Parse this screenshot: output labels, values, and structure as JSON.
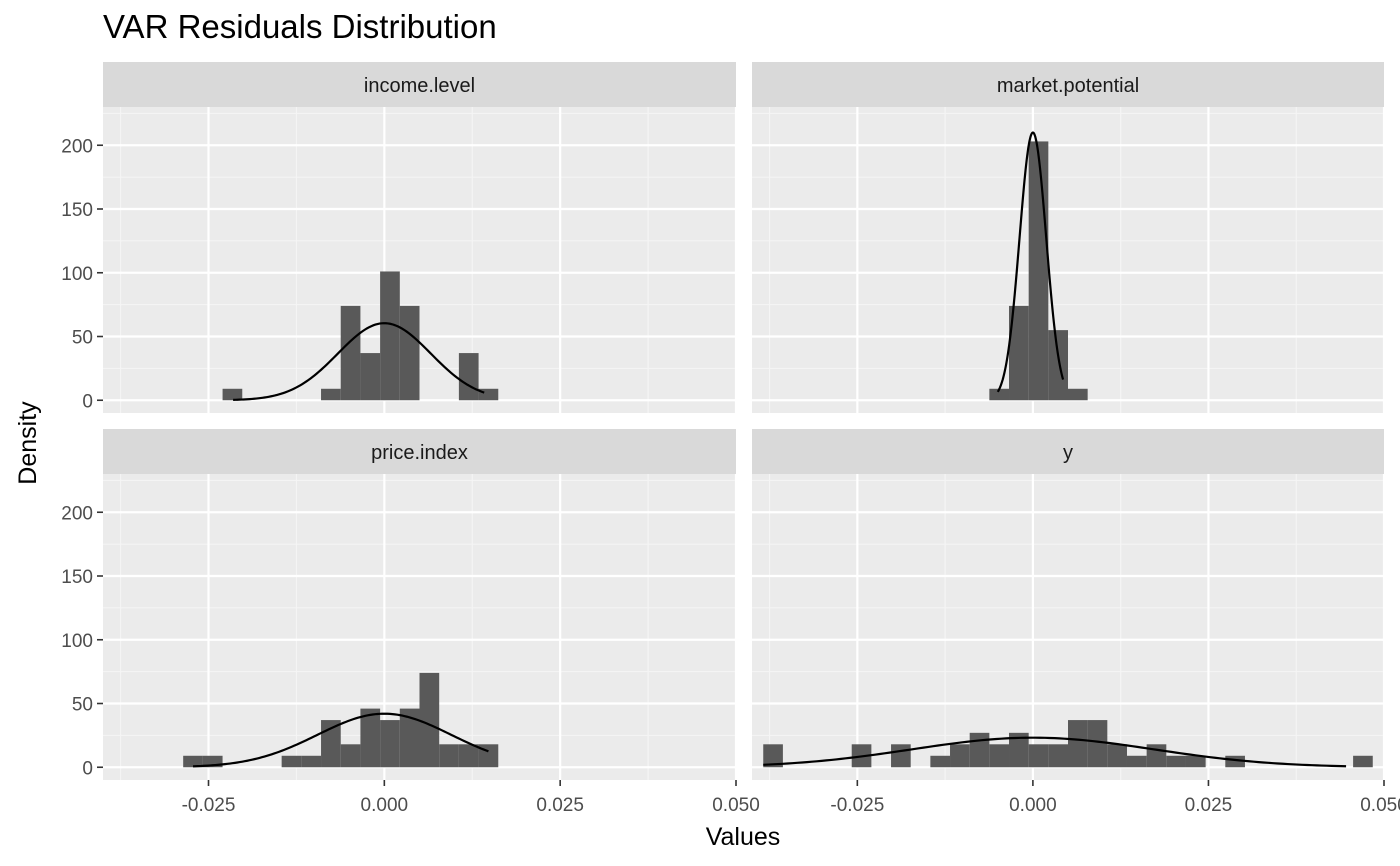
{
  "chart_data": {
    "type": "histogram",
    "title": "VAR Residuals Distribution",
    "xlabel": "Values",
    "ylabel": "Density",
    "xlim": [
      -0.04,
      0.05
    ],
    "ylim": [
      -10,
      230
    ],
    "x_ticks": [
      -0.025,
      0.0,
      0.025,
      0.05
    ],
    "x_tick_labels": [
      "-0.025",
      "0.000",
      "0.025",
      "0.050"
    ],
    "y_ticks": [
      0,
      50,
      100,
      150,
      200
    ],
    "y_tick_labels": [
      "0",
      "50",
      "100",
      "150",
      "200"
    ],
    "grid": true,
    "bar_color": "#595959",
    "curve_color": "#000000",
    "panel_bg": "#ebebeb",
    "strip_bg": "#d9d9d9",
    "panels": [
      {
        "name": "income.level",
        "bin_width": 0.0028,
        "bins": [
          {
            "x": -0.023,
            "density": 9
          },
          {
            "x": -0.009,
            "density": 9
          },
          {
            "x": -0.0062,
            "density": 74
          },
          {
            "x": -0.0034,
            "density": 37
          },
          {
            "x": -0.0006,
            "density": 101
          },
          {
            "x": 0.0022,
            "density": 74
          },
          {
            "x": 0.0106,
            "density": 37
          },
          {
            "x": 0.0134,
            "density": 9
          }
        ],
        "normal_curve": {
          "mean": 0.0,
          "sd": 0.0066,
          "x_from": -0.0215,
          "x_to": 0.0142
        }
      },
      {
        "name": "market.potential",
        "bin_width": 0.0028,
        "bins": [
          {
            "x": -0.0062,
            "density": 9
          },
          {
            "x": -0.0034,
            "density": 74
          },
          {
            "x": -0.0006,
            "density": 203
          },
          {
            "x": 0.0022,
            "density": 55
          },
          {
            "x": 0.005,
            "density": 9
          }
        ],
        "normal_curve": {
          "mean": 0.0,
          "sd": 0.0019,
          "x_from": -0.005,
          "x_to": 0.0043
        }
      },
      {
        "name": "price.index",
        "bin_width": 0.0028,
        "bins": [
          {
            "x": -0.0286,
            "density": 9
          },
          {
            "x": -0.0258,
            "density": 9
          },
          {
            "x": -0.0146,
            "density": 9
          },
          {
            "x": -0.0118,
            "density": 9
          },
          {
            "x": -0.009,
            "density": 37
          },
          {
            "x": -0.0062,
            "density": 18
          },
          {
            "x": -0.0034,
            "density": 46
          },
          {
            "x": -0.0006,
            "density": 37
          },
          {
            "x": 0.0022,
            "density": 46
          },
          {
            "x": 0.005,
            "density": 74
          },
          {
            "x": 0.0078,
            "density": 18
          },
          {
            "x": 0.0106,
            "density": 18
          },
          {
            "x": 0.0134,
            "density": 18
          }
        ],
        "normal_curve": {
          "mean": 0.0,
          "sd": 0.0095,
          "x_from": -0.0272,
          "x_to": 0.0148
        }
      },
      {
        "name": "y",
        "bin_width": 0.0028,
        "bins": [
          {
            "x": -0.0384,
            "density": 18
          },
          {
            "x": -0.0258,
            "density": 18
          },
          {
            "x": -0.0202,
            "density": 18
          },
          {
            "x": -0.0146,
            "density": 9
          },
          {
            "x": -0.0118,
            "density": 18
          },
          {
            "x": -0.009,
            "density": 27
          },
          {
            "x": -0.0062,
            "density": 18
          },
          {
            "x": -0.0034,
            "density": 27
          },
          {
            "x": -0.0006,
            "density": 18
          },
          {
            "x": 0.0022,
            "density": 18
          },
          {
            "x": 0.005,
            "density": 37
          },
          {
            "x": 0.0078,
            "density": 37
          },
          {
            "x": 0.0106,
            "density": 18
          },
          {
            "x": 0.0134,
            "density": 9
          },
          {
            "x": 0.0162,
            "density": 18
          },
          {
            "x": 0.019,
            "density": 9
          },
          {
            "x": 0.0218,
            "density": 9
          },
          {
            "x": 0.0274,
            "density": 9
          },
          {
            "x": 0.0456,
            "density": 9
          }
        ],
        "normal_curve": {
          "mean": 0.0,
          "sd": 0.0172,
          "x_from": -0.0384,
          "x_to": 0.0446
        }
      }
    ]
  }
}
